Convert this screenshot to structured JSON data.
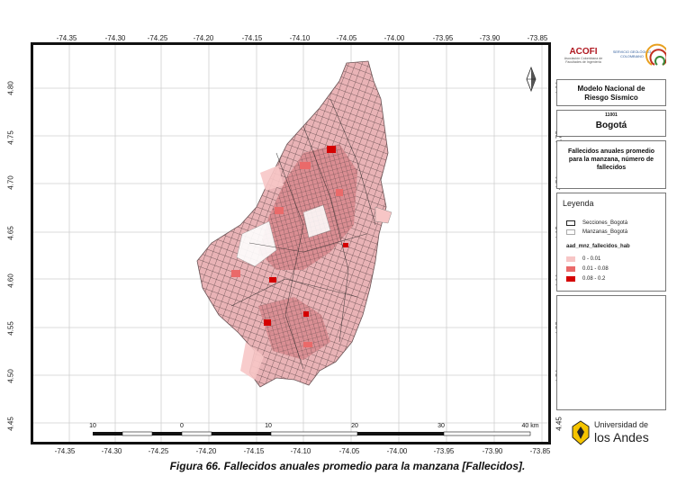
{
  "map": {
    "x_ticks": [
      "-74.35",
      "-74.30",
      "-74.25",
      "-74.20",
      "-74.15",
      "-74.10",
      "-74.05",
      "-74.00",
      "-73.95",
      "-73.90",
      "-73.85"
    ],
    "y_ticks": [
      "4.80",
      "4.75",
      "4.70",
      "4.65",
      "4.60",
      "4.55",
      "4.50",
      "4.45"
    ],
    "scale_labels": [
      "10",
      "0",
      "10",
      "20",
      "30",
      "40 km"
    ]
  },
  "logos": {
    "acofi_name": "ACOFI",
    "acofi_sub": "Asociación Colombiana de Facultades de Ingeniería",
    "sgc_text": "SERVICIO GEOLÓGICO COLOMBIANO",
    "andes_line1": "Universidad de",
    "andes_line2": "los Andes"
  },
  "panel": {
    "model_title": "Modelo Nacional de Riesgo Sísmico",
    "code": "11001",
    "city": "Bogotá",
    "subtitle": "Fallecidos anuales promedio para la manzana, número de fallecidos"
  },
  "legend": {
    "title": "Leyenda",
    "layers": [
      {
        "label": "Secciones_Bogotá",
        "fill": "#ffffff",
        "stroke": "#222222"
      },
      {
        "label": "Manzanas_Bogotá",
        "fill": "#ffffff",
        "stroke": "#aaaaaa"
      }
    ],
    "field": "aad_mnz_fallecidos_hab",
    "classes": [
      {
        "label": "0 - 0.01",
        "color": "#f7c6c6"
      },
      {
        "label": "0.01 - 0.08",
        "color": "#ea6a6a"
      },
      {
        "label": "0.08 - 0.2",
        "color": "#d40000"
      }
    ]
  },
  "caption": "Figura 66. Fallecidos anuales promedio para la manzana [Fallecidos]."
}
